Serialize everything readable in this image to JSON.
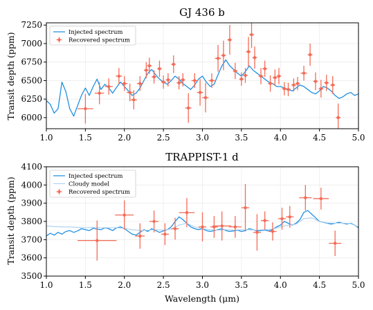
{
  "chart_data": [
    {
      "type": "line",
      "title": "GJ 436 b",
      "xlabel": "",
      "ylabel": "Transit depth (ppm)",
      "xlim": [
        1.0,
        5.0
      ],
      "ylim": [
        5850,
        7280
      ],
      "xticks": [
        1.0,
        1.5,
        2.0,
        2.5,
        3.0,
        3.5,
        4.0,
        4.5,
        5.0
      ],
      "yticks": [
        6000,
        6250,
        6500,
        6750,
        7000,
        7250
      ],
      "grid": true,
      "legend_position": "top-left",
      "colors": {
        "injected": "#1f8fe0",
        "recovered": "#f46a55"
      },
      "series": [
        {
          "name": "Injected spectrum",
          "kind": "line",
          "x": [
            1.0,
            1.05,
            1.1,
            1.15,
            1.2,
            1.25,
            1.3,
            1.35,
            1.4,
            1.45,
            1.5,
            1.55,
            1.6,
            1.65,
            1.7,
            1.75,
            1.8,
            1.85,
            1.9,
            1.95,
            2.0,
            2.05,
            2.1,
            2.15,
            2.2,
            2.25,
            2.3,
            2.35,
            2.4,
            2.45,
            2.5,
            2.55,
            2.6,
            2.65,
            2.7,
            2.75,
            2.8,
            2.85,
            2.9,
            2.95,
            3.0,
            3.05,
            3.1,
            3.15,
            3.2,
            3.25,
            3.3,
            3.35,
            3.4,
            3.45,
            3.5,
            3.55,
            3.6,
            3.65,
            3.7,
            3.75,
            3.8,
            3.85,
            3.9,
            3.95,
            4.0,
            4.05,
            4.1,
            4.15,
            4.2,
            4.25,
            4.3,
            4.35,
            4.4,
            4.45,
            4.5,
            4.55,
            4.6,
            4.65,
            4.7,
            4.75,
            4.8,
            4.85,
            4.9,
            4.95,
            5.0
          ],
          "values": [
            6230,
            6180,
            6060,
            6120,
            6480,
            6350,
            6120,
            6020,
            6160,
            6300,
            6400,
            6300,
            6420,
            6520,
            6380,
            6450,
            6400,
            6330,
            6410,
            6480,
            6420,
            6360,
            6300,
            6330,
            6400,
            6500,
            6600,
            6650,
            6580,
            6520,
            6480,
            6450,
            6500,
            6560,
            6520,
            6460,
            6420,
            6380,
            6440,
            6520,
            6560,
            6480,
            6420,
            6450,
            6580,
            6700,
            6780,
            6700,
            6650,
            6600,
            6560,
            6620,
            6700,
            6640,
            6600,
            6560,
            6520,
            6480,
            6460,
            6420,
            6420,
            6400,
            6380,
            6360,
            6400,
            6440,
            6420,
            6380,
            6340,
            6320,
            6360,
            6420,
            6400,
            6360,
            6300,
            6260,
            6280,
            6320,
            6340,
            6300,
            6320
          ]
        },
        {
          "name": "Recovered spectrum",
          "kind": "errorbar",
          "points": [
            [
              1.5,
              6120,
              0.1,
              200
            ],
            [
              1.68,
              6330,
              0.06,
              150
            ],
            [
              1.8,
              6420,
              0.05,
              110
            ],
            [
              1.93,
              6560,
              0.04,
              110
            ],
            [
              2.0,
              6460,
              0.04,
              100
            ],
            [
              2.07,
              6340,
              0.04,
              120
            ],
            [
              2.12,
              6240,
              0.04,
              130
            ],
            [
              2.2,
              6460,
              0.04,
              100
            ],
            [
              2.28,
              6640,
              0.03,
              110
            ],
            [
              2.32,
              6700,
              0.03,
              110
            ],
            [
              2.38,
              6550,
              0.03,
              90
            ],
            [
              2.45,
              6660,
              0.03,
              110
            ],
            [
              2.5,
              6480,
              0.03,
              90
            ],
            [
              2.56,
              6510,
              0.03,
              90
            ],
            [
              2.63,
              6720,
              0.03,
              120
            ],
            [
              2.7,
              6470,
              0.03,
              90
            ],
            [
              2.75,
              6510,
              0.03,
              90
            ],
            [
              2.82,
              6130,
              0.04,
              200
            ],
            [
              2.9,
              6500,
              0.04,
              100
            ],
            [
              2.97,
              6340,
              0.04,
              180
            ],
            [
              3.04,
              6270,
              0.04,
              200
            ],
            [
              3.12,
              6500,
              0.04,
              100
            ],
            [
              3.2,
              6800,
              0.04,
              180
            ],
            [
              3.27,
              6840,
              0.03,
              200
            ],
            [
              3.35,
              7050,
              0.03,
              200
            ],
            [
              3.42,
              6630,
              0.03,
              110
            ],
            [
              3.5,
              6520,
              0.03,
              90
            ],
            [
              3.55,
              6570,
              0.03,
              100
            ],
            [
              3.59,
              6890,
              0.03,
              200
            ],
            [
              3.63,
              7120,
              0.03,
              180
            ],
            [
              3.67,
              6810,
              0.03,
              150
            ],
            [
              3.75,
              6560,
              0.03,
              110
            ],
            [
              3.8,
              6660,
              0.03,
              110
            ],
            [
              3.87,
              6460,
              0.03,
              110
            ],
            [
              3.93,
              6540,
              0.03,
              110
            ],
            [
              3.98,
              6560,
              0.03,
              110
            ],
            [
              4.05,
              6390,
              0.03,
              90
            ],
            [
              4.1,
              6380,
              0.03,
              90
            ],
            [
              4.17,
              6440,
              0.03,
              90
            ],
            [
              4.22,
              6460,
              0.03,
              90
            ],
            [
              4.3,
              6600,
              0.04,
              100
            ],
            [
              4.38,
              6850,
              0.03,
              150
            ],
            [
              4.45,
              6490,
              0.03,
              120
            ],
            [
              4.52,
              6390,
              0.03,
              120
            ],
            [
              4.59,
              6470,
              0.03,
              110
            ],
            [
              4.67,
              6440,
              0.03,
              120
            ],
            [
              4.74,
              6000,
              0.03,
              190
            ]
          ]
        }
      ]
    },
    {
      "type": "line",
      "title": "TRAPPIST-1 d",
      "xlabel": "Wavelength (μm)",
      "ylabel": "Transit depth (ppm)",
      "xlim": [
        1.0,
        5.0
      ],
      "ylim": [
        3500,
        4100
      ],
      "xticks": [
        1.0,
        1.5,
        2.0,
        2.5,
        3.0,
        3.5,
        4.0,
        4.5,
        5.0
      ],
      "yticks": [
        3500,
        3600,
        3700,
        3800,
        3900,
        4000,
        4100
      ],
      "grid": true,
      "legend_position": "top-left",
      "colors": {
        "injected": "#1f8fe0",
        "cloudy": "#a9cff0",
        "recovered": "#f46a55"
      },
      "series": [
        {
          "name": "Injected spectrum",
          "kind": "line",
          "x": [
            1.0,
            1.05,
            1.1,
            1.15,
            1.2,
            1.25,
            1.3,
            1.35,
            1.4,
            1.45,
            1.5,
            1.55,
            1.6,
            1.65,
            1.7,
            1.75,
            1.8,
            1.85,
            1.9,
            1.95,
            2.0,
            2.05,
            2.1,
            2.15,
            2.2,
            2.25,
            2.3,
            2.35,
            2.4,
            2.45,
            2.5,
            2.55,
            2.6,
            2.65,
            2.7,
            2.75,
            2.8,
            2.85,
            2.9,
            2.95,
            3.0,
            3.05,
            3.1,
            3.15,
            3.2,
            3.25,
            3.3,
            3.35,
            3.4,
            3.45,
            3.5,
            3.55,
            3.6,
            3.65,
            3.7,
            3.75,
            3.8,
            3.85,
            3.9,
            3.95,
            4.0,
            4.05,
            4.1,
            4.15,
            4.2,
            4.25,
            4.3,
            4.35,
            4.4,
            4.45,
            4.5,
            4.55,
            4.6,
            4.65,
            4.7,
            4.75,
            4.8,
            4.85,
            4.9,
            4.95,
            5.0
          ],
          "values": [
            3720,
            3735,
            3725,
            3740,
            3730,
            3745,
            3750,
            3740,
            3748,
            3760,
            3755,
            3750,
            3762,
            3758,
            3755,
            3765,
            3760,
            3750,
            3765,
            3770,
            3760,
            3745,
            3730,
            3725,
            3740,
            3755,
            3745,
            3760,
            3750,
            3740,
            3748,
            3755,
            3770,
            3800,
            3825,
            3810,
            3790,
            3770,
            3760,
            3755,
            3760,
            3750,
            3745,
            3750,
            3755,
            3760,
            3750,
            3745,
            3748,
            3752,
            3745,
            3750,
            3760,
            3755,
            3748,
            3750,
            3752,
            3748,
            3755,
            3770,
            3780,
            3800,
            3790,
            3780,
            3790,
            3810,
            3850,
            3860,
            3840,
            3820,
            3800,
            3795,
            3790,
            3785,
            3790,
            3795,
            3790,
            3785,
            3790,
            3780,
            3765
          ]
        },
        {
          "name": "Cloudy model",
          "kind": "line",
          "x": [
            1.0,
            1.1,
            1.2,
            1.3,
            1.4,
            1.5,
            1.6,
            1.7,
            1.8,
            1.9,
            2.0,
            2.1,
            2.2,
            2.3,
            2.4,
            2.5,
            2.6,
            2.7,
            2.8,
            2.9,
            3.0,
            3.1,
            3.2,
            3.3,
            3.4,
            3.5,
            3.6,
            3.7,
            3.8,
            3.9,
            4.0,
            4.1,
            4.2,
            4.3,
            4.4,
            4.5,
            4.6,
            4.7,
            4.8,
            4.9,
            5.0
          ],
          "values": [
            3775,
            3772,
            3770,
            3770,
            3768,
            3765,
            3768,
            3766,
            3765,
            3766,
            3762,
            3755,
            3750,
            3752,
            3755,
            3752,
            3758,
            3780,
            3790,
            3770,
            3760,
            3755,
            3752,
            3755,
            3752,
            3755,
            3755,
            3752,
            3755,
            3758,
            3770,
            3780,
            3785,
            3815,
            3820,
            3800,
            3792,
            3790,
            3790,
            3788,
            3770
          ]
        },
        {
          "name": "Recovered spectrum",
          "kind": "errorbar",
          "points": [
            [
              1.65,
              3695,
              0.25,
              110
            ],
            [
              2.0,
              3835,
              0.12,
              80
            ],
            [
              2.2,
              3720,
              0.06,
              70
            ],
            [
              2.38,
              3800,
              0.06,
              60
            ],
            [
              2.52,
              3730,
              0.05,
              60
            ],
            [
              2.65,
              3760,
              0.05,
              60
            ],
            [
              2.8,
              3848,
              0.1,
              80
            ],
            [
              3.0,
              3770,
              0.05,
              80
            ],
            [
              3.15,
              3770,
              0.05,
              60
            ],
            [
              3.25,
              3775,
              0.12,
              80
            ],
            [
              3.42,
              3770,
              0.08,
              60
            ],
            [
              3.55,
              3875,
              0.05,
              130
            ],
            [
              3.7,
              3740,
              0.05,
              100
            ],
            [
              3.8,
              3805,
              0.05,
              50
            ],
            [
              3.9,
              3745,
              0.05,
              50
            ],
            [
              4.02,
              3815,
              0.05,
              60
            ],
            [
              4.12,
              3825,
              0.05,
              60
            ],
            [
              4.32,
              3930,
              0.08,
              70
            ],
            [
              4.52,
              3925,
              0.1,
              60
            ],
            [
              4.7,
              3680,
              0.08,
              70
            ]
          ]
        }
      ]
    }
  ]
}
